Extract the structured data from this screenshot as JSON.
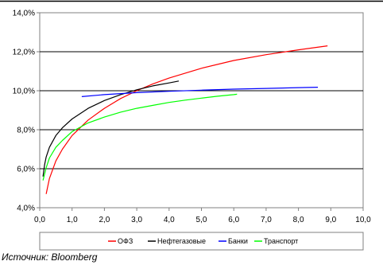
{
  "chart_data": {
    "type": "line",
    "title": "",
    "xlabel": "",
    "ylabel": "",
    "xlim": [
      0,
      10
    ],
    "ylim": [
      4,
      14
    ],
    "x_ticks": [
      "0,0",
      "1,0",
      "2,0",
      "3,0",
      "4,0",
      "5,0",
      "6,0",
      "7,0",
      "8,0",
      "9,0",
      "10,0"
    ],
    "y_ticks": [
      "4,0%",
      "6,0%",
      "8,0%",
      "10,0%",
      "12,0%",
      "14,0%"
    ],
    "grid": "horizontal",
    "legend_position": "bottom",
    "series": [
      {
        "name": "ОФЗ",
        "color": "#ff0000",
        "x": [
          0.2,
          0.3,
          0.5,
          0.7,
          1.0,
          1.5,
          2.0,
          2.5,
          3.0,
          3.5,
          4.0,
          5.0,
          6.0,
          7.0,
          8.0,
          8.9
        ],
        "y": [
          4.7,
          5.5,
          6.4,
          7.0,
          7.7,
          8.5,
          9.1,
          9.6,
          10.0,
          10.35,
          10.65,
          11.15,
          11.55,
          11.85,
          12.1,
          12.3
        ]
      },
      {
        "name": "Нефтегазовые",
        "color": "#000000",
        "x": [
          0.1,
          0.15,
          0.2,
          0.3,
          0.5,
          0.7,
          1.0,
          1.5,
          2.0,
          2.5,
          3.0,
          3.5,
          4.0,
          4.3
        ],
        "y": [
          5.6,
          6.2,
          6.6,
          7.1,
          7.7,
          8.1,
          8.55,
          9.1,
          9.5,
          9.8,
          10.05,
          10.25,
          10.4,
          10.5
        ]
      },
      {
        "name": "Банки",
        "color": "#0000ff",
        "x": [
          1.3,
          2.0,
          3.0,
          4.0,
          5.0,
          6.0,
          7.0,
          8.0,
          8.6
        ],
        "y": [
          9.7,
          9.8,
          9.9,
          9.97,
          10.03,
          10.08,
          10.12,
          10.16,
          10.18
        ]
      },
      {
        "name": "Транспорт",
        "color": "#00ff00",
        "x": [
          0.1,
          0.2,
          0.3,
          0.5,
          0.7,
          1.0,
          1.5,
          2.0,
          2.5,
          3.0,
          3.5,
          4.0,
          4.5,
          5.0,
          5.5,
          6.0,
          6.1
        ],
        "y": [
          5.4,
          6.05,
          6.55,
          7.1,
          7.45,
          7.9,
          8.35,
          8.65,
          8.9,
          9.1,
          9.25,
          9.4,
          9.52,
          9.62,
          9.72,
          9.8,
          9.82
        ]
      }
    ]
  },
  "footer": {
    "source_note": "Источник: Bloomberg"
  }
}
